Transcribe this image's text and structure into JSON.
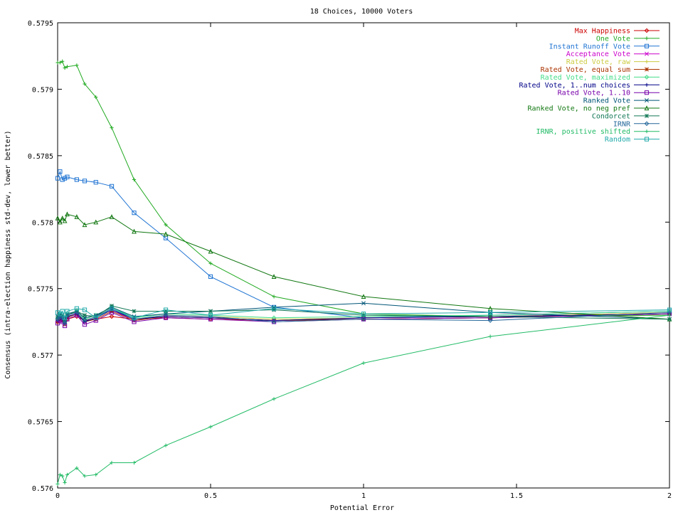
{
  "chart_data": {
    "type": "line",
    "title": "18 Choices, 10000 Voters",
    "xlabel": "Potential Error",
    "ylabel": "Consensus (intra-election happiness std-dev, lower better)",
    "xlim": [
      0,
      2
    ],
    "ylim": [
      0.576,
      0.5795
    ],
    "x_ticks": [
      0,
      0.5,
      1,
      1.5,
      2
    ],
    "x_tick_labels": [
      "0",
      "0.5",
      "1",
      "1.5",
      "2"
    ],
    "y_ticks": [
      0.576,
      0.5765,
      0.577,
      0.5775,
      0.578,
      0.5785,
      0.579,
      0.5795
    ],
    "y_tick_labels": [
      "0.576",
      "0.5765",
      "0.577",
      "0.5775",
      "0.578",
      "0.5785",
      "0.579",
      "0.5795"
    ],
    "grid": false,
    "legend_position": "top-right",
    "x": [
      0,
      0.00781,
      0.01563,
      0.02344,
      0.03125,
      0.0625,
      0.08838,
      0.125,
      0.17678,
      0.25,
      0.35355,
      0.5,
      0.70711,
      1,
      1.41421,
      2
    ],
    "series": [
      {
        "name": "Max Happiness",
        "color": "#cc0000",
        "marker": "diamond",
        "values": [
          0.57725,
          0.57727,
          0.57726,
          0.57725,
          0.57727,
          0.57729,
          0.57726,
          0.57727,
          0.57729,
          0.57727,
          0.57728,
          0.57727,
          0.57726,
          0.57727,
          0.57728,
          0.57731
        ]
      },
      {
        "name": "One Vote",
        "color": "#22aa22",
        "marker": "plus",
        "values": [
          0.5792,
          0.5792,
          0.57921,
          0.57916,
          0.57917,
          0.57918,
          0.57904,
          0.57894,
          0.57871,
          0.57832,
          0.57798,
          0.57769,
          0.57744,
          0.57731,
          0.57729,
          0.5773
        ]
      },
      {
        "name": "Instant Runoff Vote",
        "color": "#1e73d2",
        "marker": "square",
        "values": [
          0.57833,
          0.57838,
          0.57832,
          0.57833,
          0.57834,
          0.57832,
          0.57831,
          0.5783,
          0.57827,
          0.57807,
          0.57788,
          0.57759,
          0.57736,
          0.57728,
          0.5773,
          0.57733
        ]
      },
      {
        "name": "Acceptance Vote",
        "color": "#cc00cc",
        "marker": "x",
        "values": [
          0.57726,
          0.57728,
          0.57727,
          0.57723,
          0.57729,
          0.57731,
          0.57725,
          0.57728,
          0.57734,
          0.57726,
          0.57729,
          0.57728,
          0.57726,
          0.57728,
          0.57729,
          0.57732
        ]
      },
      {
        "name": "Rated Vote, raw",
        "color": "#cccc44",
        "marker": "plus",
        "values": [
          0.57727,
          0.57729,
          0.57728,
          0.57724,
          0.5773,
          0.57732,
          0.57726,
          0.57729,
          0.57735,
          0.57727,
          0.5773,
          0.57729,
          0.57727,
          0.57728,
          0.57729,
          0.57732
        ]
      },
      {
        "name": "Rated Vote, equal sum",
        "color": "#aa3300",
        "marker": "star",
        "values": [
          0.57725,
          0.57727,
          0.57726,
          0.57723,
          0.57728,
          0.57731,
          0.57725,
          0.57727,
          0.57733,
          0.57726,
          0.57729,
          0.57728,
          0.57726,
          0.57727,
          0.57728,
          0.57731
        ]
      },
      {
        "name": "Rated Vote, maximized",
        "color": "#44dd88",
        "marker": "diamond",
        "values": [
          0.57728,
          0.5773,
          0.57729,
          0.57725,
          0.57731,
          0.57733,
          0.57727,
          0.5773,
          0.57736,
          0.57728,
          0.57731,
          0.5773,
          0.57728,
          0.57729,
          0.5773,
          0.57733
        ]
      },
      {
        "name": "Rated Vote, 1..num choices",
        "color": "#000088",
        "marker": "plus",
        "values": [
          0.57726,
          0.57728,
          0.57727,
          0.57724,
          0.57729,
          0.57731,
          0.57725,
          0.57728,
          0.57734,
          0.57727,
          0.57729,
          0.57728,
          0.57726,
          0.57728,
          0.57729,
          0.57731
        ]
      },
      {
        "name": "Rated Vote, 1..10",
        "color": "#7700aa",
        "marker": "square",
        "values": [
          0.57724,
          0.57726,
          0.57725,
          0.57722,
          0.57727,
          0.5773,
          0.57723,
          0.57726,
          0.57732,
          0.57725,
          0.57728,
          0.57727,
          0.57725,
          0.57727,
          0.57728,
          0.57731
        ]
      },
      {
        "name": "Ranked Vote",
        "color": "#005577",
        "marker": "x",
        "values": [
          0.57729,
          0.57731,
          0.5773,
          0.57726,
          0.57731,
          0.57733,
          0.57728,
          0.5773,
          0.57736,
          0.57729,
          0.57731,
          0.57733,
          0.57736,
          0.57739,
          0.57732,
          0.57727
        ]
      },
      {
        "name": "Ranked Vote, no neg pref",
        "color": "#117711",
        "marker": "triangle",
        "values": [
          0.57803,
          0.578,
          0.57803,
          0.57801,
          0.57806,
          0.57804,
          0.57798,
          0.578,
          0.57804,
          0.57793,
          0.57791,
          0.57778,
          0.57759,
          0.57744,
          0.57735,
          0.57727
        ]
      },
      {
        "name": "Condorcet",
        "color": "#117755",
        "marker": "star",
        "values": [
          0.57728,
          0.5773,
          0.57729,
          0.57725,
          0.5773,
          0.57733,
          0.5773,
          0.57729,
          0.57737,
          0.57733,
          0.57733,
          0.57733,
          0.57734,
          0.5773,
          0.57729,
          0.57727
        ]
      },
      {
        "name": "IRNR",
        "color": "#226699",
        "marker": "diamond",
        "values": [
          0.57727,
          0.57729,
          0.57728,
          0.57724,
          0.5773,
          0.57732,
          0.57726,
          0.57729,
          0.57735,
          0.57727,
          0.5773,
          0.57729,
          0.57725,
          0.57727,
          0.57726,
          0.57732
        ]
      },
      {
        "name": "IRNR, positive shifted",
        "color": "#22bb66",
        "marker": "plus",
        "values": [
          0.57603,
          0.5761,
          0.57609,
          0.57604,
          0.5761,
          0.57615,
          0.57609,
          0.5761,
          0.57619,
          0.57619,
          0.57632,
          0.57646,
          0.57667,
          0.57694,
          0.57714,
          0.5773
        ]
      },
      {
        "name": "Random",
        "color": "#22aaaa",
        "marker": "square",
        "values": [
          0.57732,
          0.57731,
          0.57733,
          0.57728,
          0.57733,
          0.57735,
          0.57734,
          0.57728,
          0.57735,
          0.57728,
          0.57734,
          0.5773,
          0.57735,
          0.57731,
          0.57732,
          0.57734
        ]
      }
    ]
  }
}
